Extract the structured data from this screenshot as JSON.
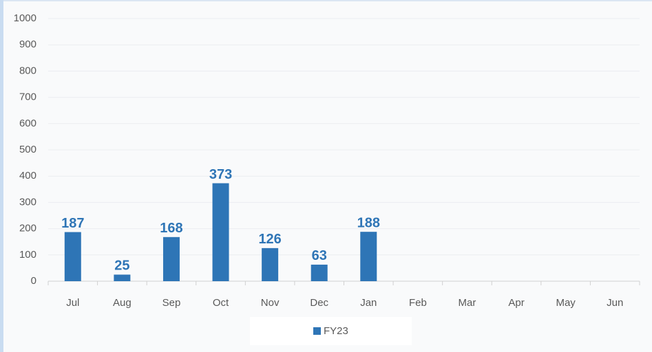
{
  "chart_data": {
    "type": "bar",
    "categories": [
      "Jul",
      "Aug",
      "Sep",
      "Oct",
      "Nov",
      "Dec",
      "Jan",
      "Feb",
      "Mar",
      "Apr",
      "May",
      "Jun"
    ],
    "series": [
      {
        "name": "FY23",
        "color": "#2e75b6",
        "values": [
          187,
          25,
          168,
          373,
          126,
          63,
          188,
          null,
          null,
          null,
          null,
          null
        ]
      }
    ],
    "ylim": [
      0,
      1000
    ],
    "yticks": [
      0,
      100,
      200,
      300,
      400,
      500,
      600,
      700,
      800,
      900,
      1000
    ],
    "grid": true,
    "legend": "bottom",
    "data_labels": true
  }
}
